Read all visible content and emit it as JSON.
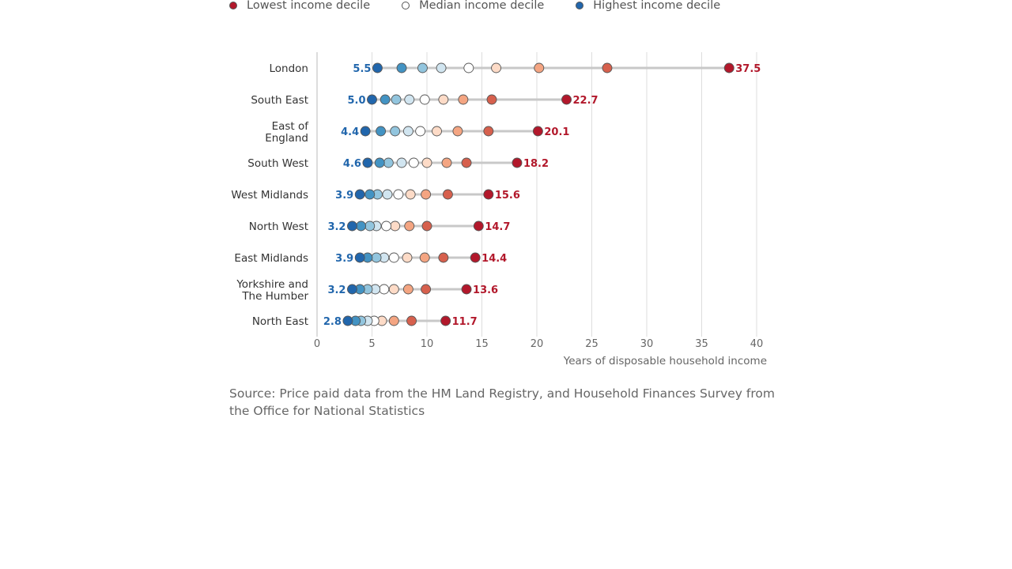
{
  "legend": {
    "lowest": {
      "label": "Lowest income decile",
      "color": "#b2182b"
    },
    "median": {
      "label": "Median income decile",
      "color": "#ffffff"
    },
    "highest": {
      "label": "Highest income decile",
      "color": "#2166ac"
    }
  },
  "source": "Source: Price paid data from the HM Land Registry, and Household Finances Survey from the Office for National Statistics",
  "chart_data": {
    "type": "scatter",
    "subtype": "dot-strip",
    "title": "",
    "xlabel": "Years of disposable household income",
    "ylabel": "",
    "xlim": [
      0,
      40
    ],
    "xticks": [
      0,
      5,
      10,
      15,
      20,
      25,
      30,
      35,
      40
    ],
    "grid": "vertical",
    "decile_colors": [
      "#2166ac",
      "#4393c3",
      "#92c5de",
      "#d1e5f0",
      "#ffffff",
      "#fddbc7",
      "#f4a582",
      "#d6604d",
      "#b2182b"
    ],
    "series_order_note_visible": false,
    "regions": [
      {
        "name": [
          "London"
        ],
        "values": [
          5.5,
          7.7,
          9.6,
          11.3,
          13.8,
          16.3,
          20.2,
          26.4,
          37.5
        ]
      },
      {
        "name": [
          "South East"
        ],
        "values": [
          5.0,
          6.2,
          7.2,
          8.4,
          9.8,
          11.5,
          13.3,
          15.9,
          22.7
        ]
      },
      {
        "name": [
          "East of",
          "England"
        ],
        "values": [
          4.4,
          5.8,
          7.1,
          8.3,
          9.4,
          10.9,
          12.8,
          15.6,
          20.1
        ]
      },
      {
        "name": [
          "South West"
        ],
        "values": [
          4.6,
          5.7,
          6.5,
          7.7,
          8.8,
          10.0,
          11.8,
          13.6,
          18.2
        ]
      },
      {
        "name": [
          "West Midlands"
        ],
        "values": [
          3.9,
          4.8,
          5.5,
          6.4,
          7.4,
          8.5,
          9.9,
          11.9,
          15.6
        ]
      },
      {
        "name": [
          "North West"
        ],
        "values": [
          3.2,
          4.0,
          4.8,
          5.4,
          6.3,
          7.1,
          8.4,
          10.0,
          14.7
        ]
      },
      {
        "name": [
          "East Midlands"
        ],
        "values": [
          3.9,
          4.6,
          5.4,
          6.1,
          7.0,
          8.2,
          9.8,
          11.5,
          14.4
        ]
      },
      {
        "name": [
          "Yorkshire and",
          "The Humber"
        ],
        "values": [
          3.2,
          3.9,
          4.6,
          5.3,
          6.1,
          7.0,
          8.3,
          9.9,
          13.6
        ]
      },
      {
        "name": [
          "North East"
        ],
        "values": [
          2.8,
          3.5,
          4.0,
          4.6,
          5.2,
          5.9,
          7.0,
          8.6,
          11.7
        ]
      }
    ],
    "labels": {
      "lowest": [
        "37.5",
        "22.7",
        "20.1",
        "18.2",
        "15.6",
        "14.7",
        "14.4",
        "13.6",
        "11.7"
      ],
      "highest": [
        "5.5",
        "5.0",
        "4.4",
        "4.6",
        "3.9",
        "3.2",
        "3.9",
        "3.2",
        "2.8"
      ]
    }
  }
}
